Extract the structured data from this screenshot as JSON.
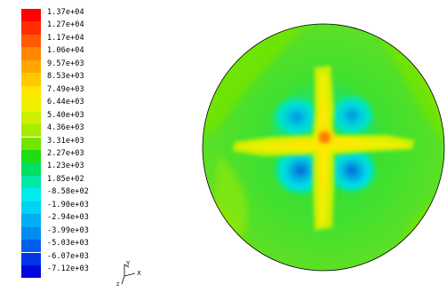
{
  "colorbar": {
    "levels": [
      {
        "label": "1.37e+04",
        "color": "#ff0000"
      },
      {
        "label": "1.27e+04",
        "color": "#ff2d00"
      },
      {
        "label": "1.17e+04",
        "color": "#ff5a00"
      },
      {
        "label": "1.06e+04",
        "color": "#ff8700"
      },
      {
        "label": "9.57e+03",
        "color": "#ffa800"
      },
      {
        "label": "8.53e+03",
        "color": "#ffc800"
      },
      {
        "label": "7.49e+03",
        "color": "#ffe600"
      },
      {
        "label": "6.44e+03",
        "color": "#f0f000"
      },
      {
        "label": "5.40e+03",
        "color": "#ccf000"
      },
      {
        "label": "4.36e+03",
        "color": "#a6ec00"
      },
      {
        "label": "3.31e+03",
        "color": "#72e400"
      },
      {
        "label": "2.27e+03",
        "color": "#20dc10"
      },
      {
        "label": "1.23e+03",
        "color": "#00e060"
      },
      {
        "label": "1.85e+02",
        "color": "#00e8a8"
      },
      {
        "label": "-8.58e+02",
        "color": "#00ecec"
      },
      {
        "label": "-1.90e+03",
        "color": "#00d2f4"
      },
      {
        "label": "-2.94e+03",
        "color": "#00aef4"
      },
      {
        "label": "-3.99e+03",
        "color": "#008cf0"
      },
      {
        "label": "-5.03e+03",
        "color": "#0060ec"
      },
      {
        "label": "-6.07e+03",
        "color": "#0036e8"
      },
      {
        "label": "-7.12e+03",
        "color": "#0008e0"
      }
    ]
  },
  "triad": {
    "x_label": "X",
    "y_label": "Y",
    "z_label": "Z"
  },
  "contour": {
    "background_color": "#3cdc2a",
    "outline_color": "#000000"
  }
}
